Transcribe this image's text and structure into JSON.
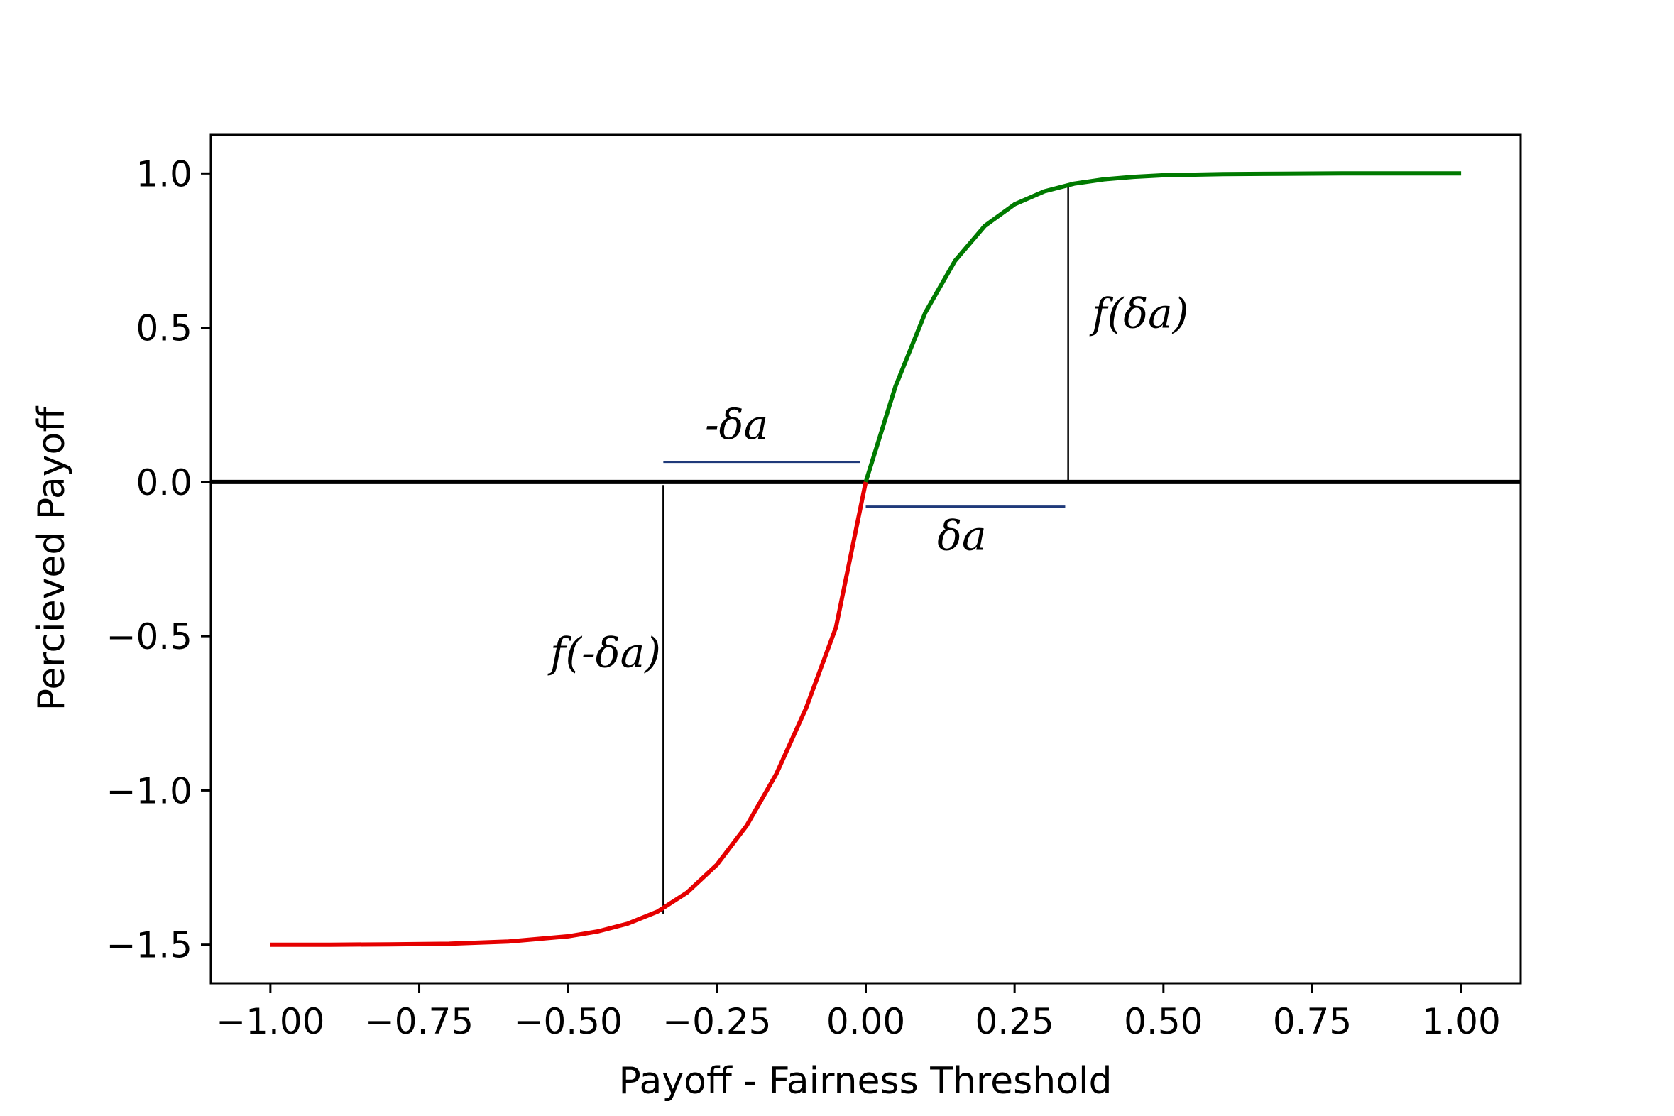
{
  "chart_data": {
    "type": "line",
    "xlabel": "Payoff - Fairness Threshold",
    "ylabel": "Percieved Payoff",
    "xlim": [
      -1.1,
      1.1
    ],
    "ylim": [
      -1.625,
      1.125
    ],
    "xticks": [
      -1.0,
      -0.75,
      -0.5,
      -0.25,
      0.0,
      0.25,
      0.5,
      0.75,
      1.0
    ],
    "xtick_labels": [
      "−1.00",
      "−0.75",
      "−0.50",
      "−0.25",
      "0.00",
      "0.25",
      "0.50",
      "0.75",
      "1.00"
    ],
    "yticks": [
      1.0,
      0.5,
      0.0,
      -0.5,
      -1.0,
      -1.5
    ],
    "ytick_labels": [
      "1.0",
      "0.5",
      "0.0",
      "−0.5",
      "−1.0",
      "−1.5"
    ],
    "grid": false,
    "legend": "none",
    "series": [
      {
        "color": "#e50000",
        "x": [
          -1.0,
          -0.9,
          -0.8,
          -0.7,
          -0.6,
          -0.5,
          -0.45,
          -0.4,
          -0.35,
          -0.3,
          -0.25,
          -0.2,
          -0.15,
          -0.1,
          -0.05,
          0.0
        ],
        "y": [
          -1.5,
          -1.5,
          -1.499,
          -1.497,
          -1.49,
          -1.473,
          -1.457,
          -1.432,
          -1.393,
          -1.331,
          -1.241,
          -1.114,
          -0.946,
          -0.732,
          -0.471,
          0.0
        ]
      },
      {
        "color": "#007a00",
        "x": [
          0.0,
          0.05,
          0.1,
          0.15,
          0.2,
          0.25,
          0.3,
          0.35,
          0.4,
          0.45,
          0.5,
          0.6,
          0.7,
          0.8,
          0.9,
          1.0
        ],
        "y": [
          0.0,
          0.31,
          0.549,
          0.717,
          0.83,
          0.9,
          0.942,
          0.967,
          0.981,
          0.989,
          0.994,
          0.998,
          0.999,
          1.0,
          1.0,
          1.0
        ]
      }
    ],
    "reference_lines": {
      "zero_line_y": 0.0,
      "upper_vertical": {
        "x": 0.34,
        "y0": 0.0,
        "y1": 0.96
      },
      "lower_vertical": {
        "x": -0.34,
        "y0": -0.01,
        "y1": -1.4
      },
      "neg_delta_bracket": {
        "x0": -0.34,
        "x1": -0.01,
        "y": 0.065,
        "color": "#1f3a7a"
      },
      "pos_delta_bracket": {
        "x0": 0.0,
        "x1": 0.335,
        "y": -0.08,
        "color": "#1f3a7a"
      }
    },
    "annotations": [
      {
        "id": "f_delta",
        "text": "f(δa)",
        "x": 0.38,
        "y": 0.5
      },
      {
        "id": "neg_delta",
        "text": "-δa",
        "x": -0.27,
        "y": 0.14
      },
      {
        "id": "delta",
        "text": "δa",
        "x": 0.12,
        "y": -0.22
      },
      {
        "id": "f_neg_delta",
        "text": "f(-δa)",
        "x": -0.53,
        "y": -0.6
      }
    ]
  }
}
